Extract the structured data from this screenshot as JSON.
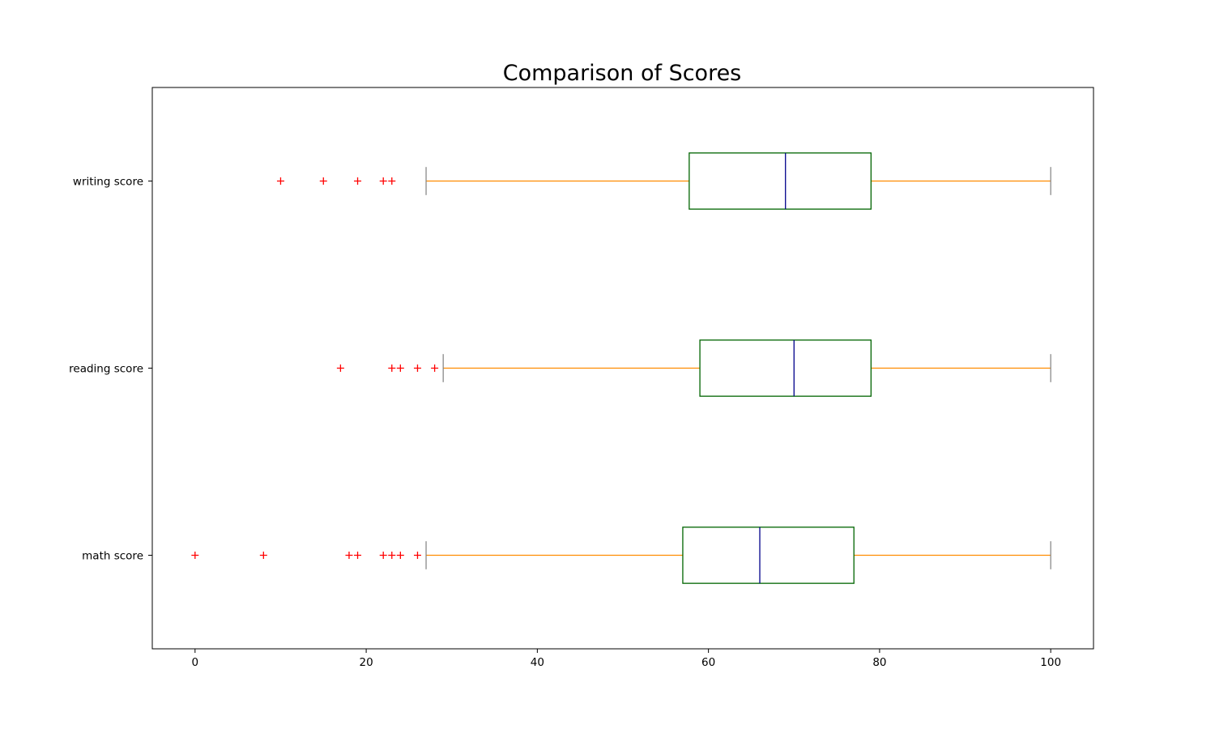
{
  "chart_data": {
    "type": "boxplot",
    "orientation": "horizontal",
    "title": "Comparison of Scores",
    "xlabel": "",
    "ylabel": "",
    "xlim": [
      -5,
      105
    ],
    "x_ticks": [
      0,
      20,
      40,
      60,
      80,
      100
    ],
    "x_tick_labels": [
      "0",
      "20",
      "40",
      "60",
      "80",
      "100"
    ],
    "grid": false,
    "colors": {
      "box": "#006400",
      "median": "#00008b",
      "whisker": "#ff8c00",
      "cap": "#808080",
      "flier": "#ff0000"
    },
    "series": [
      {
        "name": "math score",
        "q1": 57,
        "median": 66,
        "q3": 77,
        "whisker_low": 27,
        "whisker_high": 100,
        "outliers": [
          0,
          8,
          18,
          19,
          22,
          23,
          24,
          26
        ]
      },
      {
        "name": "reading score",
        "q1": 59,
        "median": 70,
        "q3": 79,
        "whisker_low": 29,
        "whisker_high": 100,
        "outliers": [
          17,
          23,
          24,
          26,
          28
        ]
      },
      {
        "name": "writing score",
        "q1": 57.75,
        "median": 69,
        "q3": 79,
        "whisker_low": 27,
        "whisker_high": 100,
        "outliers": [
          10,
          15,
          19,
          22,
          23
        ]
      }
    ]
  }
}
